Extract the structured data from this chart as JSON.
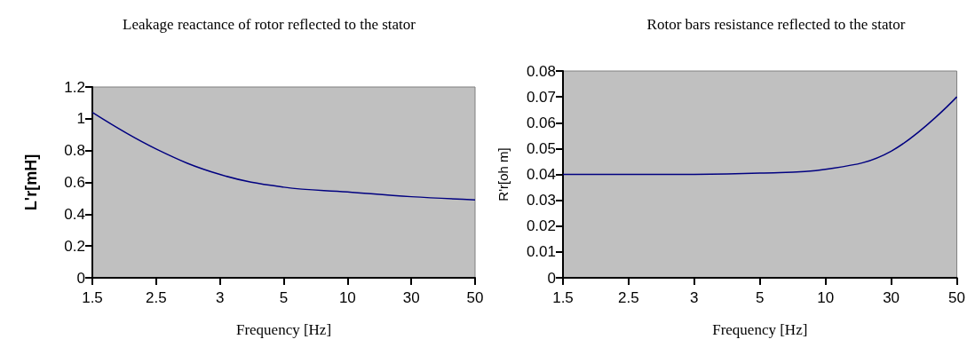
{
  "chart_data": [
    {
      "type": "line",
      "title": "Leakage reactance of rotor reflected to the stator",
      "xlabel": "Frequency [Hz]",
      "ylabel": "L'r[mH]",
      "categories": [
        "1.5",
        "2.5",
        "3",
        "5",
        "10",
        "30",
        "50"
      ],
      "series": [
        {
          "color": "#000080",
          "values": [
            1.04,
            0.81,
            0.65,
            0.57,
            0.54,
            0.51,
            0.49
          ]
        }
      ],
      "ylim": [
        0,
        1.2
      ],
      "yticks": [
        0,
        0.2,
        0.4,
        0.6,
        0.8,
        1,
        1.2
      ],
      "grid": false,
      "marker": "none",
      "line_style": "solid"
    },
    {
      "type": "line",
      "title": "Rotor bars resistance reflected to the stator",
      "xlabel": "Frequency [Hz]",
      "ylabel": "R'r[oh m]",
      "categories": [
        "1.5",
        "2.5",
        "3",
        "5",
        "10",
        "30",
        "50"
      ],
      "series": [
        {
          "color": "#000080",
          "values": [
            0.04,
            0.04,
            0.04,
            0.0405,
            0.042,
            0.049,
            0.07
          ]
        }
      ],
      "ylim": [
        0,
        0.08
      ],
      "yticks": [
        0,
        0.01,
        0.02,
        0.03,
        0.04,
        0.05,
        0.06,
        0.07,
        0.08
      ],
      "grid": false,
      "marker": "none",
      "line_style": "solid"
    }
  ]
}
